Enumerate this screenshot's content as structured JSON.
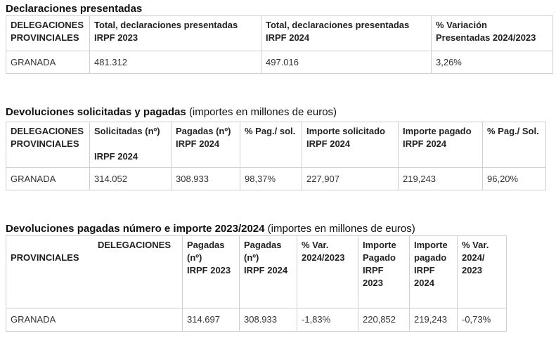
{
  "section1": {
    "title": "Declaraciones presentadas",
    "headers": [
      "DELEGACIONES\nPROVINCIALES",
      "Total, declaraciones presentadas\nIRPF 2023",
      "Total, declaraciones presentadas\nIRPF 2024",
      "% Variación\nPresentadas 2024/2023"
    ],
    "row": [
      "GRANADA",
      "481.312",
      "497.016",
      "3,26%"
    ]
  },
  "section2": {
    "title": "Devoluciones solicitadas y pagadas",
    "subtitle": "(importes en millones de euros)",
    "headers": [
      "DELEGACIONES\nPROVINCIALES",
      "Solicitadas (nº)\n\nIRPF 2024",
      "Pagadas (nº)\nIRPF 2024",
      "% Pag./ sol.",
      "Importe solicitado\nIRPF 2024",
      "Importe pagado\nIRPF 2024",
      "% Pag./ Sol."
    ],
    "row": [
      "GRANADA",
      "314.052",
      "308.933",
      "98,37%",
      "227,907",
      "219,243",
      "96,20%"
    ]
  },
  "section3": {
    "title": "Devoluciones pagadas número e importe 2023/2024",
    "subtitle": "(importes en millones de euros)",
    "header_first_line1": "DELEGACIONES",
    "header_first_line2": "PROVINCIALES",
    "headers": [
      "",
      "Pagadas\n(nº)\nIRPF 2023",
      "Pagadas\n(nº)\nIRPF 2024",
      "% Var.\n2024/2023",
      "Importe\nPagado\nIRPF\n2023",
      "Importe\npagado\nIRPF\n2024",
      "% Var.\n2024/\n2023"
    ],
    "row": [
      "GRANADA",
      "314.697",
      "308.933",
      "-1,83%",
      "220,852",
      "219,243",
      "-0,73%"
    ]
  }
}
